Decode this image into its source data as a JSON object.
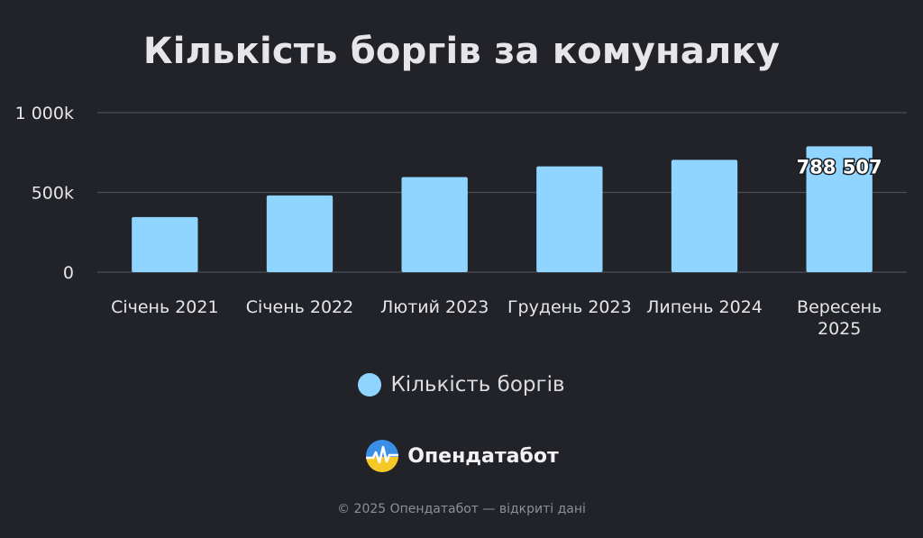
{
  "title": "Кількість боргів за комуналку",
  "chart_data": {
    "type": "bar",
    "title": "Кількість боргів за комуналку",
    "categories": [
      "Січень 2021",
      "Січень 2022",
      "Лютий 2023",
      "Грудень 2023",
      "Липень 2024",
      "Вересень 2025"
    ],
    "category_lines": [
      [
        "Січень 2021"
      ],
      [
        "Січень 2022"
      ],
      [
        "Лютий 2023"
      ],
      [
        "Грудень 2023"
      ],
      [
        "Липень 2024"
      ],
      [
        "Вересень",
        "2025"
      ]
    ],
    "series": [
      {
        "name": "Кількість боргів",
        "values": [
          345000,
          481000,
          596000,
          663000,
          704000,
          788507
        ],
        "data_labels": [
          "",
          "",
          "",
          "",
          "",
          "788 507"
        ]
      }
    ],
    "ylim": [
      0,
      1000000
    ],
    "y_ticks": [
      0,
      500000,
      1000000
    ],
    "y_tick_labels": [
      "0",
      "500k",
      "1 000k"
    ],
    "xlabel": "",
    "ylabel": "",
    "grid": true,
    "legend_position": "bottom-center",
    "colors": {
      "bar": "#90d5ff",
      "grid": "#4b4e55",
      "background": "#212328",
      "text": "#e6e6e8"
    }
  },
  "legend": {
    "label": "Кількість боргів",
    "color": "#90d5ff"
  },
  "brand": {
    "name": "Опендатабот",
    "icon": "opendatabot-logo-icon"
  },
  "footer": {
    "copyright": "© 2025 Опендатабот — відкриті дані"
  }
}
